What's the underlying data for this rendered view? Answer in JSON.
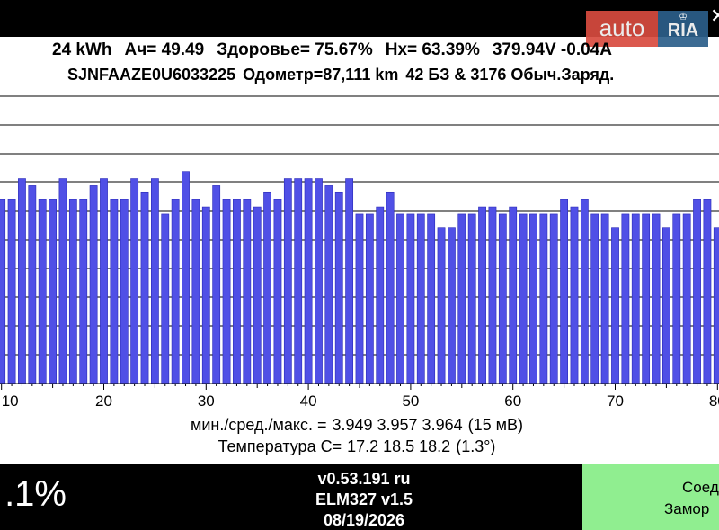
{
  "watermark": {
    "auto": "auto",
    "ria": "RIA"
  },
  "summary": {
    "capacity": "24 kWh",
    "ah": "Ач= 49.49",
    "health": "Здоровье= 75.67%",
    "hx": "Hx= 63.39%",
    "voltage_current": "379.94V -0.04A"
  },
  "vehicle": {
    "vin": "SJNFAAZE0U6033225",
    "odometer": "Одометр=87,111 km",
    "charges": "42 БЗ & 3176 Обыч.Заряд."
  },
  "chart_data": {
    "type": "bar",
    "x_first": 9,
    "x_last": 80,
    "xlim": [
      9.5,
      80.5
    ],
    "ylim": [
      3.93,
      3.971
    ],
    "values": [
      3.957,
      3.956,
      3.956,
      3.959,
      3.958,
      3.956,
      3.956,
      3.959,
      3.956,
      3.956,
      3.958,
      3.959,
      3.956,
      3.956,
      3.959,
      3.957,
      3.959,
      3.954,
      3.956,
      3.96,
      3.956,
      3.955,
      3.958,
      3.956,
      3.956,
      3.956,
      3.955,
      3.957,
      3.956,
      3.959,
      3.959,
      3.959,
      3.959,
      3.958,
      3.957,
      3.959,
      3.954,
      3.954,
      3.955,
      3.957,
      3.954,
      3.954,
      3.954,
      3.954,
      3.952,
      3.952,
      3.954,
      3.954,
      3.955,
      3.955,
      3.954,
      3.955,
      3.954,
      3.954,
      3.954,
      3.954,
      3.956,
      3.955,
      3.956,
      3.954,
      3.954,
      3.952,
      3.954,
      3.954,
      3.954,
      3.954,
      3.952,
      3.954,
      3.954,
      3.956,
      3.956,
      3.952
    ],
    "x_tick_labels": [
      "10",
      "20",
      "30",
      "40",
      "50",
      "60",
      "70",
      "80"
    ],
    "bar_color": "#5050e6",
    "bar_edge_color": "#2a2ab8",
    "grid": true
  },
  "stats": {
    "label": "мин./сред./макс. =",
    "values": "3.949 3.957 3.964",
    "spread": "(15 мВ)",
    "temp_label": "Температура C=",
    "temps": "17.2  18.5  18.2",
    "temp_spread": "(1.3°)"
  },
  "footer": {
    "percent": ".1%",
    "version": "v0.53.191 ru",
    "adapter": "ELM327 v1.5",
    "date": "08/19/2026",
    "connect_line1": "Соед",
    "connect_line2": "Замор"
  },
  "colors": {
    "connect_button": "#90ee90",
    "bars": "#5050e6"
  }
}
